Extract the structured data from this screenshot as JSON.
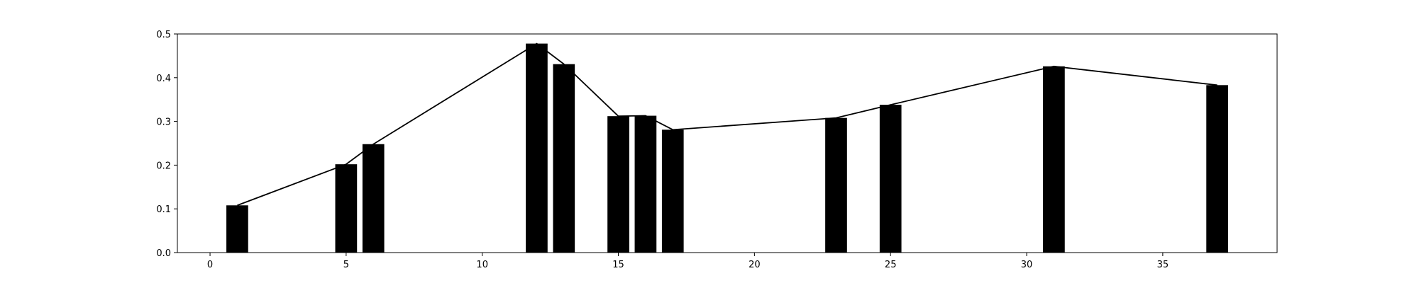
{
  "chart_data": {
    "type": "bar",
    "title": "",
    "xlabel": "",
    "ylabel": "",
    "xlim": [
      -1.2,
      39.2
    ],
    "ylim": [
      0,
      0.5
    ],
    "xticks": [
      0,
      5,
      10,
      15,
      20,
      25,
      30,
      35
    ],
    "yticks": [
      0.0,
      0.1,
      0.2,
      0.3,
      0.4,
      0.5
    ],
    "xtick_labels": [
      "0",
      "5",
      "10",
      "15",
      "20",
      "25",
      "30",
      "35"
    ],
    "ytick_labels": [
      "0.0",
      "0.1",
      "0.2",
      "0.3",
      "0.4",
      "0.5"
    ],
    "bar_width": 0.8,
    "bars": {
      "x": [
        1,
        5,
        6,
        12,
        13,
        15,
        16,
        17,
        23,
        25,
        31,
        37
      ],
      "values": [
        0.108,
        0.202,
        0.248,
        0.478,
        0.431,
        0.312,
        0.313,
        0.281,
        0.308,
        0.338,
        0.426,
        0.383
      ]
    },
    "line": {
      "x": [
        1,
        5,
        6,
        12,
        13,
        15,
        16,
        17,
        23,
        25,
        31,
        37
      ],
      "values": [
        0.108,
        0.202,
        0.248,
        0.478,
        0.431,
        0.312,
        0.313,
        0.281,
        0.308,
        0.338,
        0.426,
        0.383
      ]
    },
    "grid": false,
    "legend": "none",
    "colors": {
      "bar": "#000000",
      "line": "#000000",
      "axes": "#000000"
    }
  }
}
